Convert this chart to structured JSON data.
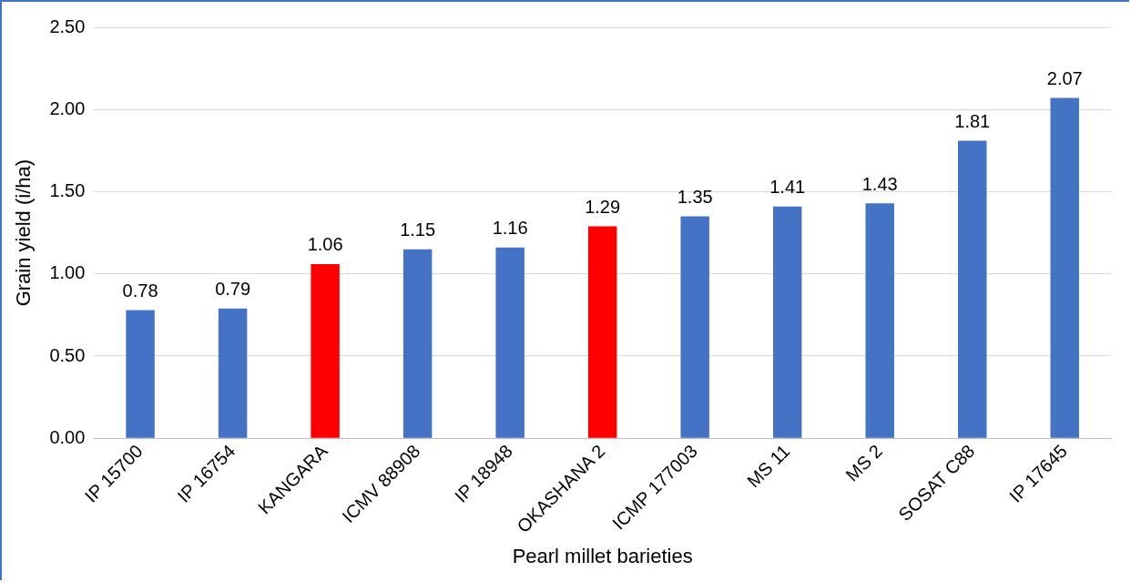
{
  "chart_data": {
    "type": "bar",
    "xlabel": "Pearl millet barieties",
    "ylabel": "Grain yield (i/ha)",
    "categories": [
      "IP 15700",
      "IP 16754",
      "KANGARA",
      "ICMV 88908",
      "IP 18948",
      "OKASHANA 2",
      "ICMP 177003",
      "MS 11",
      "MS 2",
      "SOSAT C88",
      "IP 17645"
    ],
    "values": [
      0.78,
      0.79,
      1.06,
      1.15,
      1.16,
      1.29,
      1.35,
      1.41,
      1.43,
      1.81,
      2.07
    ],
    "colors": [
      "#4472c4",
      "#4472c4",
      "#ff0000",
      "#4472c4",
      "#4472c4",
      "#ff0000",
      "#4472c4",
      "#4472c4",
      "#4472c4",
      "#4472c4",
      "#4472c4"
    ],
    "value_labels": [
      "0.78",
      "0.79",
      "1.06",
      "1.15",
      "1.16",
      "1.29",
      "1.35",
      "1.41",
      "1.43",
      "1.81",
      "2.07"
    ],
    "ylim": [
      0,
      2.5
    ],
    "yticks": [
      {
        "value": 0,
        "label": "0.00"
      },
      {
        "value": 0.5,
        "label": "0.50"
      },
      {
        "value": 1,
        "label": "1.00"
      },
      {
        "value": 1.5,
        "label": "1.50"
      },
      {
        "value": 2,
        "label": "2.00"
      },
      {
        "value": 2.5,
        "label": "2.50"
      }
    ],
    "grid": "y",
    "legend": false
  }
}
